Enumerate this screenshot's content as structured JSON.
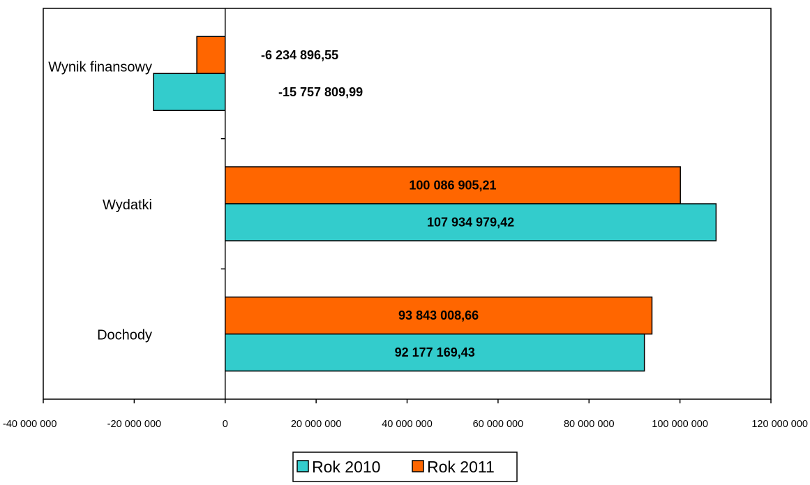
{
  "chart_data": {
    "type": "bar",
    "orientation": "horizontal",
    "categories": [
      "Wynik finansowy",
      "Wydatki",
      "Dochody"
    ],
    "series": [
      {
        "name": "Rok 2010",
        "color": "#33CCCC",
        "values": [
          -15757809.99,
          107934979.42,
          92177169.43
        ],
        "labels": [
          "-15 757 809,99",
          "107 934 979,42",
          "92 177 169,43"
        ]
      },
      {
        "name": "Rok 2011",
        "color": "#FF6600",
        "values": [
          -6234896.55,
          100086905.21,
          93843008.66
        ],
        "labels": [
          "-6 234 896,55",
          "100 086 905,21",
          "93 843 008,66"
        ]
      }
    ],
    "xlim": [
      -40000000,
      120000000
    ],
    "xticks": [
      -40000000,
      -20000000,
      0,
      20000000,
      40000000,
      60000000,
      80000000,
      100000000,
      120000000
    ],
    "xtick_labels": [
      "-40 000 000",
      "-20 000 000",
      "0",
      "20 000 000",
      "40 000 000",
      "60 000 000",
      "80 000 000",
      "100 000 000",
      "120 000 000"
    ],
    "grid": false,
    "legend_position": "bottom",
    "title": "",
    "xlabel": "",
    "ylabel": ""
  }
}
